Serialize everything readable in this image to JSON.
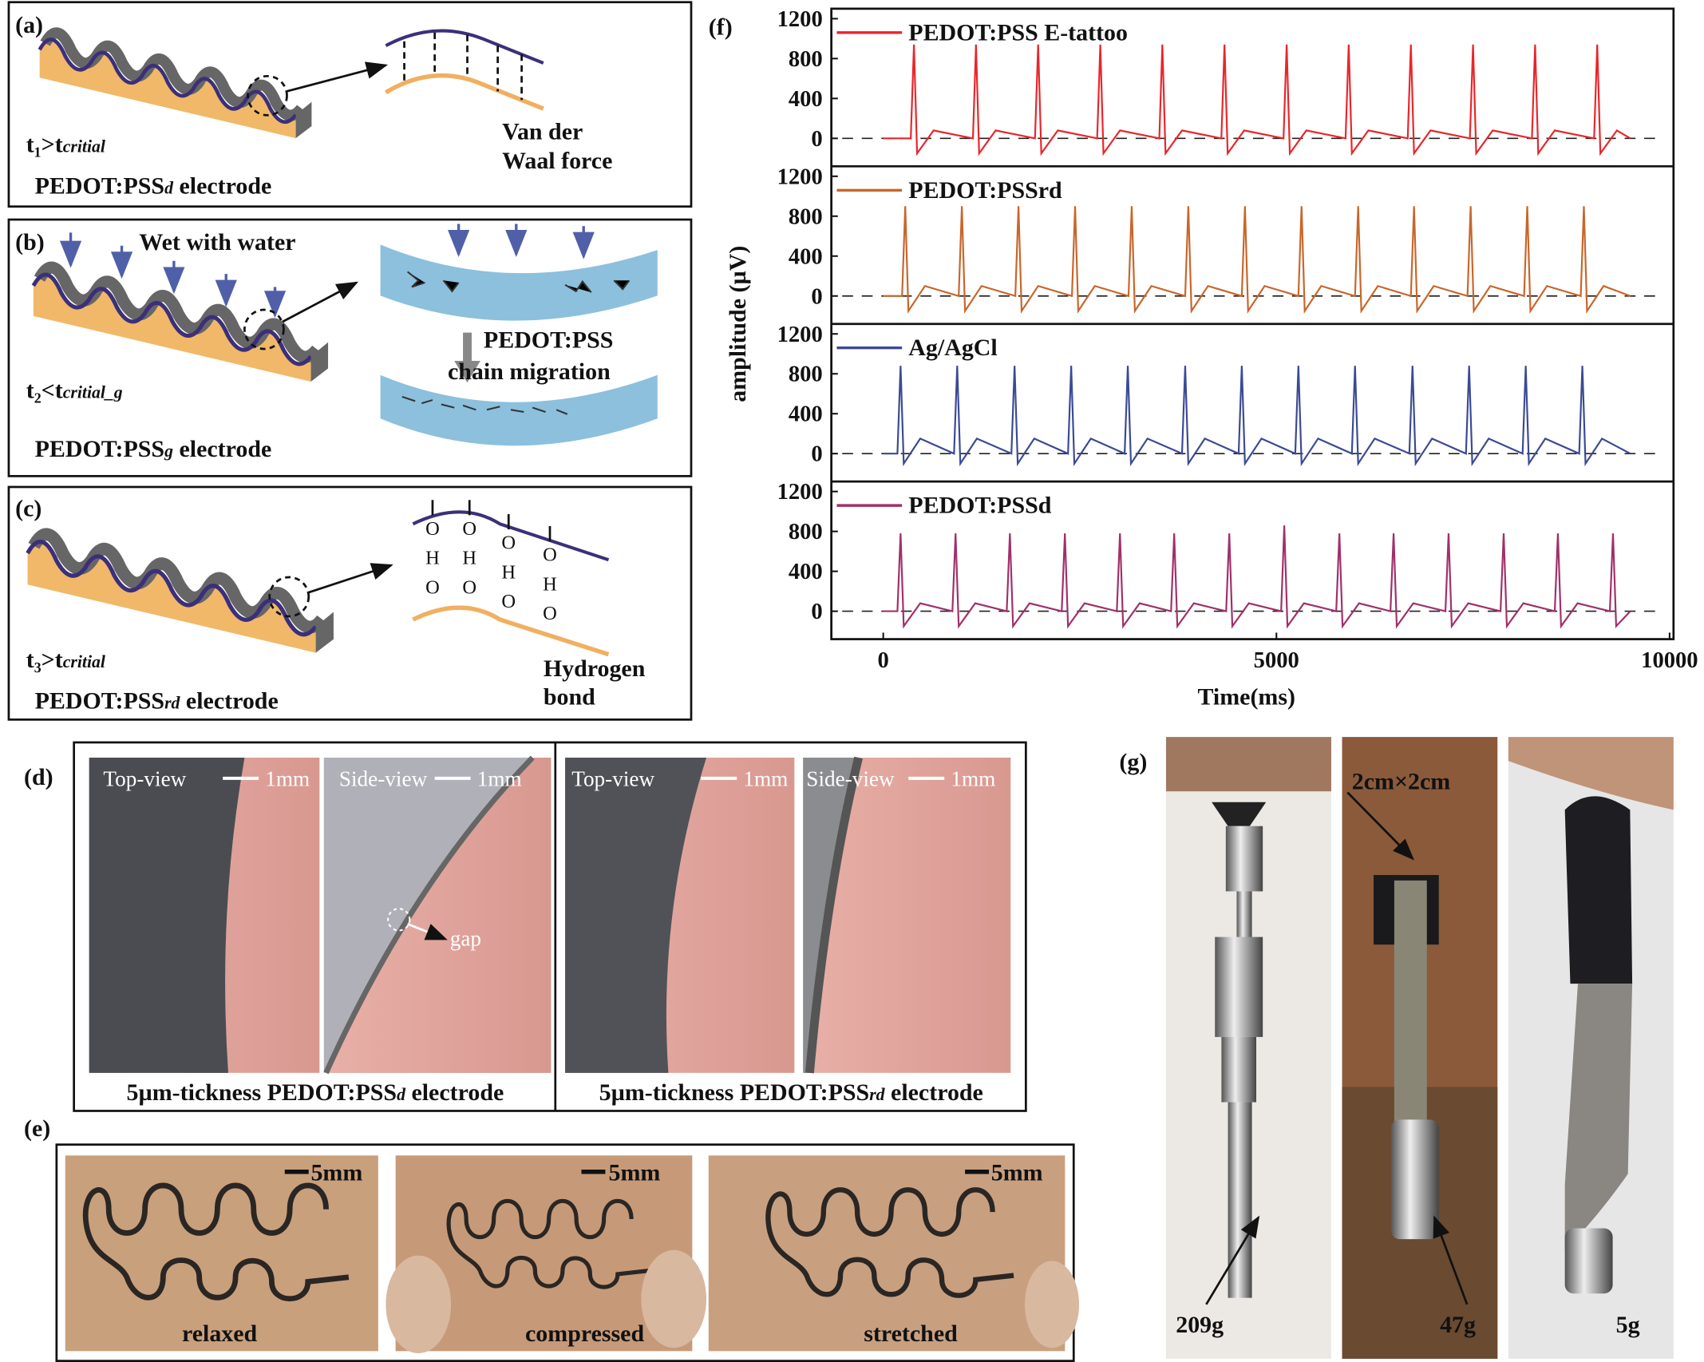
{
  "panel_a": {
    "label": "(a)",
    "condition": {
      "main": "t₁>t",
      "sub": "critial"
    },
    "electrode": {
      "main": "PEDOT:PSS",
      "sub": "d",
      "rest": " electrode"
    },
    "force": [
      "Van der",
      "Waal force"
    ]
  },
  "panel_b": {
    "label": "(b)",
    "wet": "Wet with water",
    "condition": {
      "main": "t₂<t",
      "sub": "critial_g"
    },
    "electrode": {
      "main": "PEDOT:PSS",
      "sub": "g",
      "rest": " electrode"
    },
    "migration": [
      "PEDOT:PSS",
      "chain migration"
    ]
  },
  "panel_c": {
    "label": "(c)",
    "condition": {
      "main": "t₃>t",
      "sub": "critial"
    },
    "electrode": {
      "main": "PEDOT:PSS",
      "sub": "rd",
      "rest": " electrode"
    },
    "bond_atoms": [
      "O",
      "H",
      "O"
    ],
    "bond": [
      "Hydrogen",
      "bond"
    ]
  },
  "panel_d": {
    "label": "(d)",
    "views": [
      "Top-view",
      "Side-view",
      "Top-view",
      "Side-view"
    ],
    "scale": "1mm",
    "gap": "gap",
    "captions": [
      {
        "main": "5µm-tickness PEDOT:PSS",
        "sub": "d",
        "rest": " electrode"
      },
      {
        "main": "5µm-tickness PEDOT:PSS",
        "sub": "rd",
        "rest": " electrode"
      }
    ]
  },
  "panel_e": {
    "label": "(e)",
    "scale": "5mm",
    "states": [
      "relaxed",
      "compressed",
      "stretched"
    ]
  },
  "panel_g": {
    "label": "(g)",
    "size": "2cm×2cm",
    "weights": [
      "209g",
      "47g",
      "5g"
    ]
  },
  "chart_data": {
    "type": "line",
    "panel_label": "(f)",
    "xlabel": "Time(ms)",
    "ylabel": "amplitude (µV)",
    "xlim": [
      -660,
      10050
    ],
    "xticks": [
      0,
      5000,
      10000
    ],
    "ylim": [
      -280,
      1300
    ],
    "yticks": [
      0,
      400,
      800,
      1200
    ],
    "zero_line": true,
    "series": [
      {
        "name": "PEDOT:PSS E-tattoo",
        "color": "#e8262a",
        "x": [
          0,
          350,
          390,
          430,
          640,
          1140,
          1180,
          1220,
          1430,
          1930,
          1970,
          2010,
          2220,
          2720,
          2760,
          2800,
          3010,
          3510,
          3550,
          3590,
          3800,
          4300,
          4340,
          4380,
          4590,
          5090,
          5130,
          5170,
          5380,
          5880,
          5920,
          5960,
          6170,
          6670,
          6710,
          6750,
          6960,
          7460,
          7500,
          7540,
          7750,
          8250,
          8290,
          8330,
          8540,
          9040,
          9080,
          9120,
          9330,
          9500
        ],
        "values": [
          0,
          0,
          940,
          -150,
          80,
          0,
          940,
          -150,
          80,
          0,
          940,
          -150,
          80,
          0,
          940,
          -150,
          80,
          0,
          940,
          -150,
          80,
          0,
          940,
          -150,
          80,
          0,
          940,
          -150,
          80,
          0,
          940,
          -150,
          80,
          0,
          940,
          -150,
          80,
          0,
          940,
          -150,
          80,
          0,
          940,
          -150,
          80,
          0,
          940,
          -150,
          80,
          0
        ]
      },
      {
        "name": "PEDOT:PSSrd",
        "color": "#c8662a",
        "x": [
          0,
          240,
          280,
          320,
          530,
          960,
          1000,
          1040,
          1250,
          1680,
          1720,
          1760,
          1970,
          2400,
          2440,
          2480,
          2690,
          3120,
          3160,
          3200,
          3410,
          3840,
          3880,
          3920,
          4130,
          4560,
          4600,
          4640,
          4850,
          5280,
          5320,
          5360,
          5570,
          6000,
          6040,
          6080,
          6290,
          6710,
          6750,
          6790,
          7000,
          7430,
          7470,
          7510,
          7720,
          8150,
          8190,
          8230,
          8440,
          8870,
          8910,
          8950,
          9160,
          9500
        ],
        "values": [
          0,
          0,
          900,
          -150,
          100,
          0,
          900,
          -150,
          100,
          0,
          900,
          -150,
          100,
          0,
          900,
          -150,
          100,
          0,
          900,
          -150,
          100,
          0,
          900,
          -150,
          100,
          0,
          900,
          -150,
          100,
          0,
          900,
          -150,
          100,
          0,
          900,
          -150,
          100,
          0,
          900,
          -150,
          100,
          0,
          900,
          -150,
          100,
          0,
          900,
          -150,
          100,
          0,
          900,
          -150,
          100,
          0
        ]
      },
      {
        "name": "Ag/AgCl",
        "color": "#3a4a94",
        "x": [
          0,
          180,
          220,
          260,
          470,
          900,
          940,
          980,
          1190,
          1630,
          1670,
          1710,
          1920,
          2350,
          2390,
          2430,
          2640,
          3070,
          3110,
          3150,
          3360,
          3800,
          3840,
          3880,
          4090,
          4520,
          4560,
          4600,
          4810,
          5240,
          5280,
          5320,
          5530,
          5960,
          6000,
          6040,
          6250,
          6690,
          6730,
          6770,
          6980,
          7410,
          7450,
          7490,
          7700,
          8130,
          8170,
          8210,
          8420,
          8850,
          8890,
          8930,
          9140,
          9500
        ],
        "values": [
          0,
          0,
          880,
          -100,
          150,
          0,
          880,
          -100,
          150,
          0,
          880,
          -100,
          150,
          0,
          880,
          -100,
          150,
          0,
          880,
          -100,
          150,
          0,
          880,
          -100,
          150,
          0,
          880,
          -100,
          150,
          0,
          880,
          -100,
          150,
          0,
          880,
          -100,
          150,
          0,
          880,
          -100,
          150,
          0,
          880,
          -100,
          150,
          0,
          880,
          -100,
          150,
          0,
          880,
          -100,
          150,
          0
        ]
      },
      {
        "name": "PEDOT:PSSd",
        "color": "#a0306a",
        "x": [
          0,
          180,
          220,
          260,
          470,
          880,
          920,
          960,
          1170,
          1570,
          1610,
          1650,
          1860,
          2270,
          2310,
          2350,
          2560,
          2970,
          3010,
          3050,
          3260,
          3660,
          3700,
          3740,
          3950,
          4360,
          4400,
          4440,
          4650,
          5060,
          5100,
          5140,
          5350,
          5760,
          5800,
          5840,
          6050,
          6450,
          6490,
          6530,
          6740,
          7150,
          7190,
          7230,
          7440,
          7850,
          7890,
          7930,
          8140,
          8540,
          8580,
          8620,
          8830,
          9240,
          9280,
          9320,
          9500
        ],
        "values": [
          0,
          0,
          780,
          -150,
          80,
          0,
          780,
          -150,
          80,
          0,
          780,
          -150,
          80,
          0,
          780,
          -150,
          80,
          0,
          780,
          -150,
          80,
          0,
          780,
          -150,
          80,
          0,
          780,
          -150,
          80,
          0,
          860,
          -150,
          80,
          0,
          780,
          -150,
          80,
          0,
          780,
          -150,
          80,
          0,
          780,
          -150,
          80,
          0,
          780,
          -150,
          80,
          0,
          780,
          -150,
          80,
          0,
          780,
          -150,
          0
        ]
      }
    ]
  }
}
